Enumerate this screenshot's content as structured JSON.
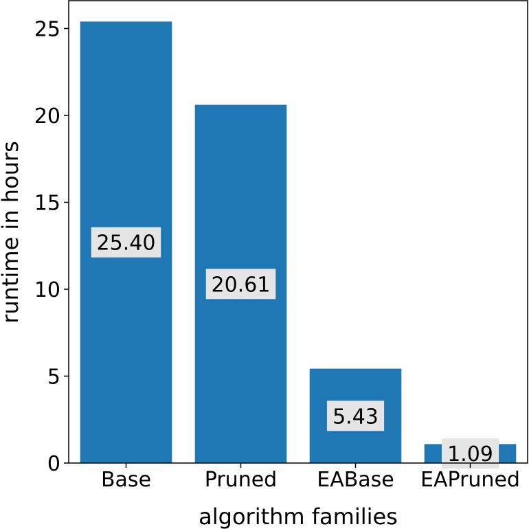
{
  "chart_data": {
    "type": "bar",
    "categories": [
      "Base",
      "Pruned",
      "EABase",
      "EAPruned"
    ],
    "values": [
      25.4,
      20.61,
      5.43,
      1.09
    ],
    "value_labels": [
      "25.40",
      "20.61",
      "5.43",
      "1.09"
    ],
    "xlabel": "algorithm families",
    "ylabel": "runtime in hours",
    "ylim": [
      0,
      26.6
    ],
    "yticks": [
      0,
      5,
      10,
      15,
      20,
      25
    ],
    "bar_color": "#1f77b4",
    "label_box_color": "#e5e5e5",
    "grid": false
  }
}
